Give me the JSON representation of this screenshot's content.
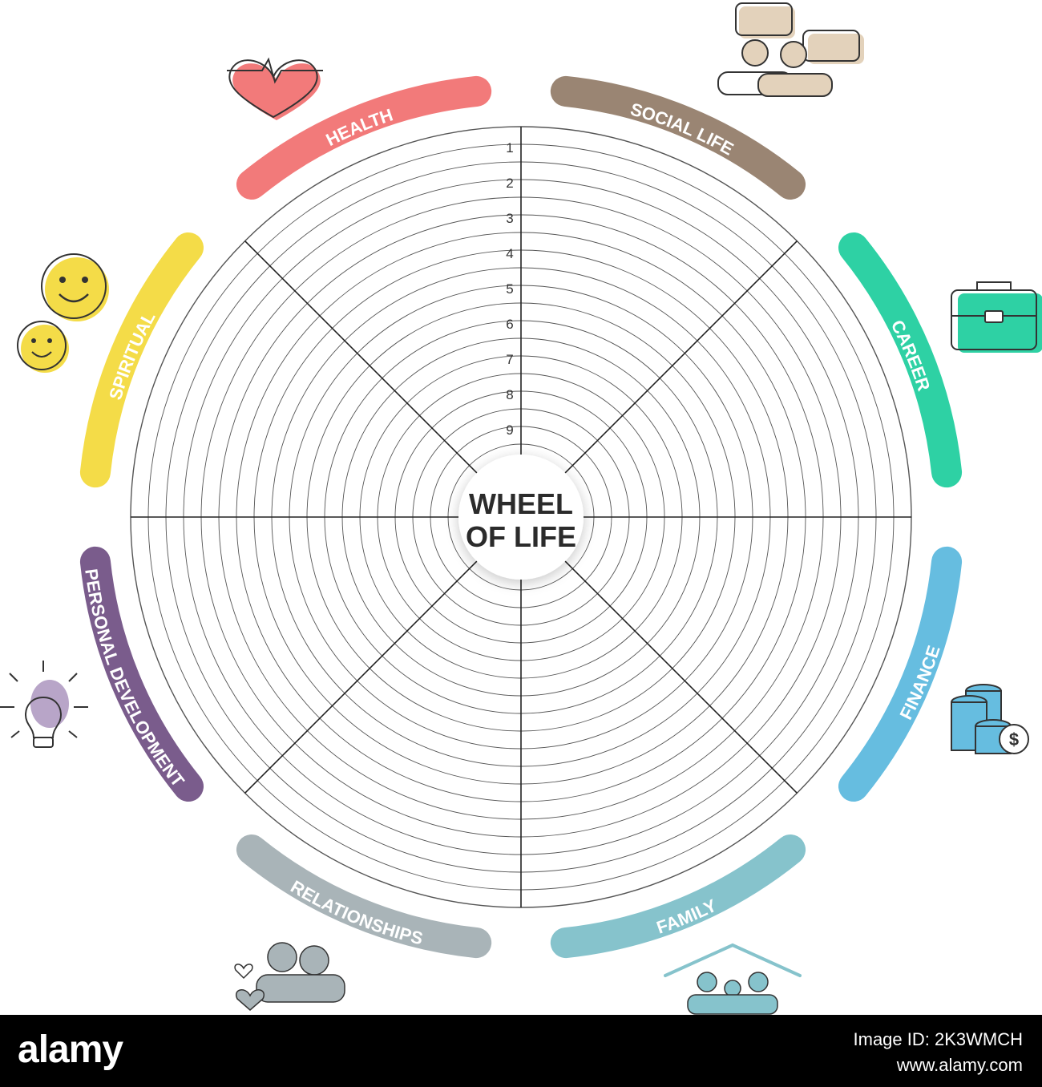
{
  "diagram": {
    "center_title_line1": "WHEEL",
    "center_title_line2": "OF LIFE",
    "scale_labels": [
      "1",
      "2",
      "3",
      "4",
      "5",
      "6",
      "7",
      "8",
      "9"
    ],
    "categories": [
      {
        "label": "HEALTH",
        "color": "#f27a7a",
        "icon": "heart-pulse-icon"
      },
      {
        "label": "SOCIAL LIFE",
        "color": "#9a8573",
        "icon": "people-chat-icon"
      },
      {
        "label": "CAREER",
        "color": "#2ed1a4",
        "icon": "briefcase-icon"
      },
      {
        "label": "FINANCE",
        "color": "#66bde0",
        "icon": "coins-dollar-icon"
      },
      {
        "label": "FAMILY",
        "color": "#86c3cc",
        "icon": "family-house-icon"
      },
      {
        "label": "RELATIONSHIPS",
        "color": "#a9b4b8",
        "icon": "couple-hearts-icon"
      },
      {
        "label": "PERSONAL DEVELOPMENT",
        "color": "#7a5c8c",
        "icon": "lightbulb-icon"
      },
      {
        "label": "SPIRITUAL",
        "color": "#f4dc48",
        "icon": "smiley-faces-icon"
      }
    ]
  },
  "footer": {
    "brand": "alamy",
    "image_id": "Image ID: 2K3WMCH",
    "url": "www.alamy.com"
  }
}
